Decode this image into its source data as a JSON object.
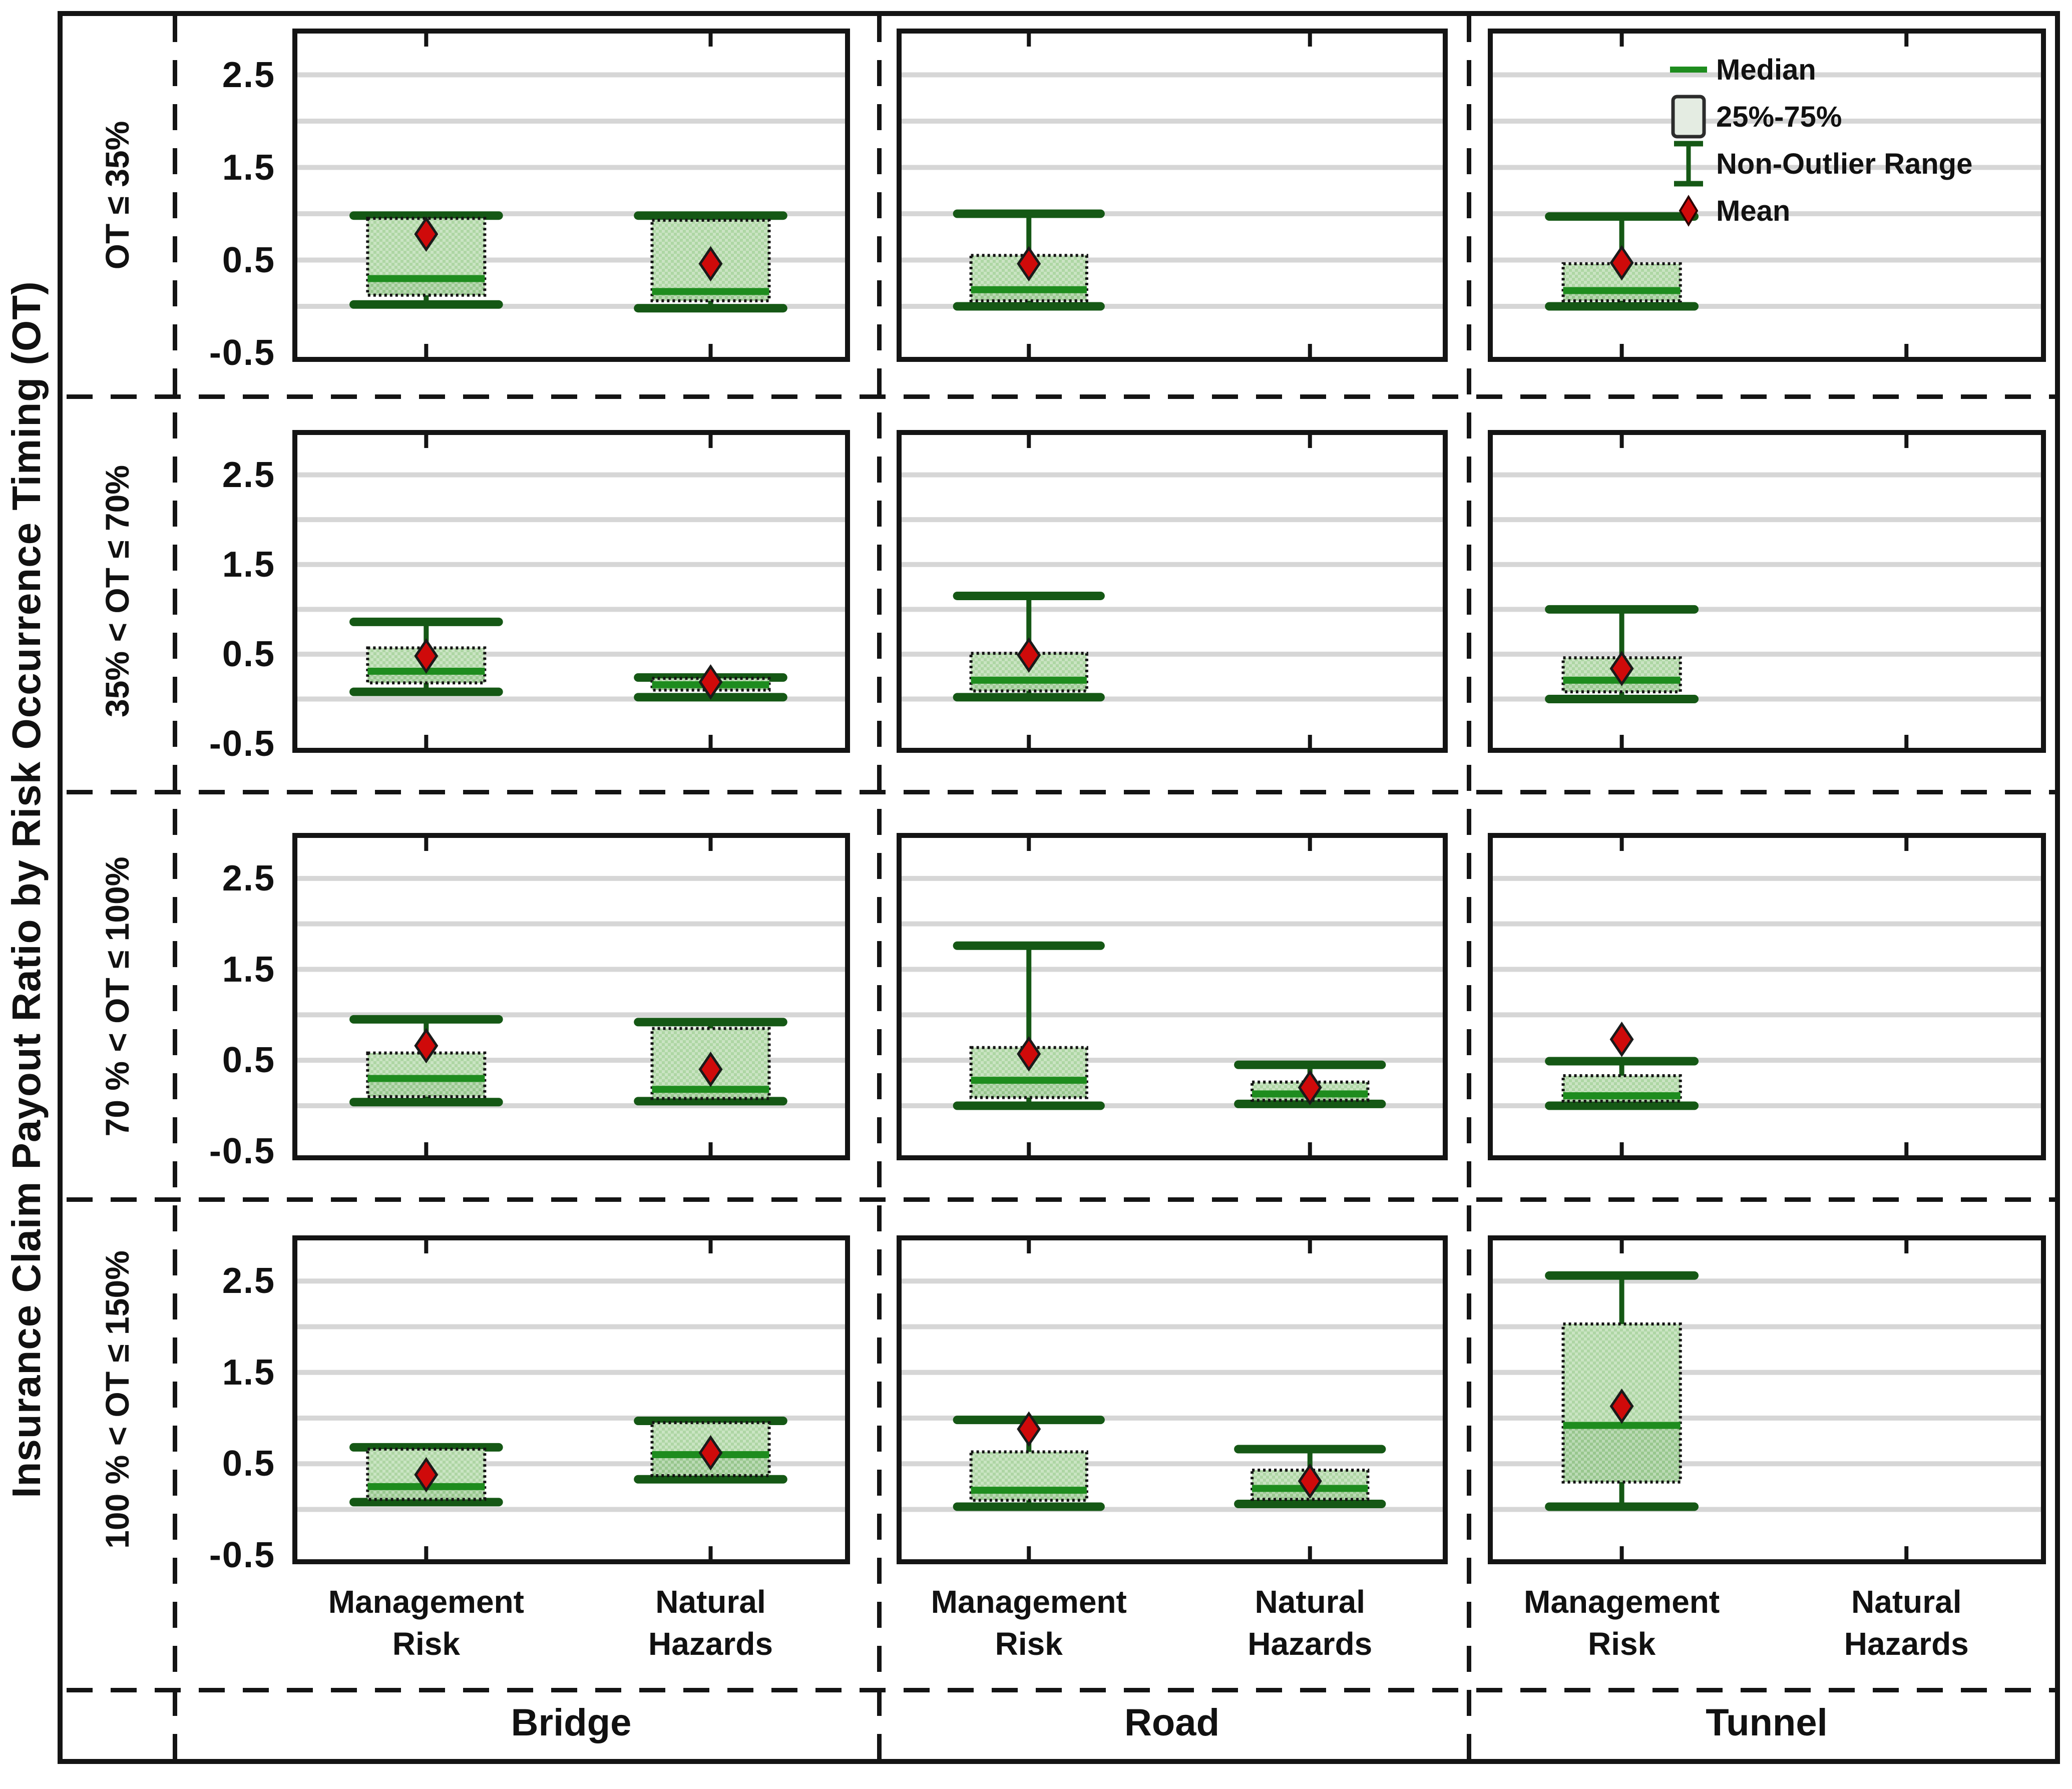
{
  "figure": {
    "ylabel": "Insurance Claim Payout Ratio by Risk Occurrence Timing (OT)",
    "row_labels": [
      "OT ≤ 35%",
      "35% < OT ≤ 70%",
      "70 % < OT ≤ 100%",
      "100 % < OT ≤ 150%"
    ],
    "column_labels": [
      "Bridge",
      "Road",
      "Tunnel"
    ],
    "category_labels": [
      "Management Risk",
      "Natural Hazards"
    ],
    "y_tick_labels": [
      "2.5",
      "1.5",
      "0.5",
      "-0.5"
    ],
    "legend": {
      "median": "Median",
      "box": "25%-75%",
      "range": "Non-Outlier Range",
      "mean": "Mean"
    },
    "colors": {
      "box_fill_upper": "#aed6a4",
      "box_fill_lower": "#98c78e",
      "box_border": "#141414",
      "median": "#1e8c1e",
      "whisker": "#155815",
      "mean": "#cf0a0a",
      "gridline": "#d6d6d6",
      "frame": "#141414",
      "legend_box_fill": "#e4ece2"
    }
  },
  "chart_data": {
    "type": "boxplot",
    "layout": "4 rows (risk occurrence timing bins) x 3 columns (asset types), 2 category slots per panel",
    "rows": [
      "OT ≤ 35%",
      "35% < OT ≤ 70%",
      "70 % < OT ≤ 100%",
      "100 % < OT ≤ 150%"
    ],
    "columns": [
      "Bridge",
      "Road",
      "Tunnel"
    ],
    "categories": [
      "Management Risk",
      "Natural Hazards"
    ],
    "ylabel": "Insurance Claim Payout Ratio by Risk Occurrence Timing (OT)",
    "y_ticks": [
      2.5,
      1.5,
      0.5,
      -0.5
    ],
    "gridline_values": [
      0,
      0.5,
      1.0,
      1.5,
      2.0,
      2.5
    ],
    "ylim": [
      -0.6,
      3.0
    ],
    "legend": [
      "Median",
      "25%-75%",
      "Non-Outlier Range",
      "Mean"
    ],
    "legend_position": "top-right of Tunnel / OT ≤ 35% panel",
    "panels": [
      {
        "row": 0,
        "col": 0,
        "boxes": [
          {
            "category": "Management Risk",
            "position": 0,
            "whisker_low": 0.02,
            "q1": 0.12,
            "median": 0.3,
            "q3": 0.95,
            "whisker_high": 0.98,
            "mean": 0.78
          },
          {
            "category": "Natural Hazards",
            "position": 1,
            "whisker_low": -0.02,
            "q1": 0.06,
            "median": 0.16,
            "q3": 0.93,
            "whisker_high": 0.98,
            "mean": 0.46
          }
        ]
      },
      {
        "row": 0,
        "col": 1,
        "boxes": [
          {
            "category": "Management Risk",
            "position": 0,
            "whisker_low": 0.0,
            "q1": 0.06,
            "median": 0.18,
            "q3": 0.55,
            "whisker_high": 1.0,
            "mean": 0.46
          }
        ]
      },
      {
        "row": 0,
        "col": 2,
        "boxes": [
          {
            "category": "Management Risk",
            "position": 0,
            "whisker_low": 0.0,
            "q1": 0.06,
            "median": 0.17,
            "q3": 0.46,
            "whisker_high": 0.97,
            "mean": 0.47
          }
        ]
      },
      {
        "row": 1,
        "col": 0,
        "boxes": [
          {
            "category": "Management Risk",
            "position": 0,
            "whisker_low": 0.08,
            "q1": 0.18,
            "median": 0.31,
            "q3": 0.57,
            "whisker_high": 0.86,
            "mean": 0.48
          },
          {
            "category": "Natural Hazards",
            "position": 1,
            "whisker_low": 0.02,
            "q1": 0.1,
            "median": 0.16,
            "q3": 0.23,
            "whisker_high": 0.24,
            "mean": 0.19
          }
        ]
      },
      {
        "row": 1,
        "col": 1,
        "boxes": [
          {
            "category": "Management Risk",
            "position": 0,
            "whisker_low": 0.02,
            "q1": 0.09,
            "median": 0.21,
            "q3": 0.51,
            "whisker_high": 1.15,
            "mean": 0.49
          }
        ]
      },
      {
        "row": 1,
        "col": 2,
        "boxes": [
          {
            "category": "Management Risk",
            "position": 0,
            "whisker_low": 0.0,
            "q1": 0.08,
            "median": 0.21,
            "q3": 0.46,
            "whisker_high": 1.0,
            "mean": 0.34
          }
        ]
      },
      {
        "row": 2,
        "col": 0,
        "boxes": [
          {
            "category": "Management Risk",
            "position": 0,
            "whisker_low": 0.04,
            "q1": 0.1,
            "median": 0.3,
            "q3": 0.58,
            "whisker_high": 0.95,
            "mean": 0.66
          },
          {
            "category": "Natural Hazards",
            "position": 1,
            "whisker_low": 0.05,
            "q1": 0.08,
            "median": 0.18,
            "q3": 0.85,
            "whisker_high": 0.92,
            "mean": 0.4
          }
        ]
      },
      {
        "row": 2,
        "col": 1,
        "boxes": [
          {
            "category": "Management Risk",
            "position": 0,
            "whisker_low": 0.0,
            "q1": 0.09,
            "median": 0.28,
            "q3": 0.64,
            "whisker_high": 1.76,
            "mean": 0.57
          },
          {
            "category": "Natural Hazards",
            "position": 1,
            "whisker_low": 0.02,
            "q1": 0.06,
            "median": 0.13,
            "q3": 0.26,
            "whisker_high": 0.45,
            "mean": 0.2
          }
        ]
      },
      {
        "row": 2,
        "col": 2,
        "boxes": [
          {
            "category": "Management Risk",
            "position": 0,
            "whisker_low": 0.0,
            "q1": 0.05,
            "median": 0.11,
            "q3": 0.33,
            "whisker_high": 0.49,
            "mean": 0.73
          }
        ]
      },
      {
        "row": 3,
        "col": 0,
        "boxes": [
          {
            "category": "Management Risk",
            "position": 0,
            "whisker_low": 0.08,
            "q1": 0.11,
            "median": 0.25,
            "q3": 0.66,
            "whisker_high": 0.68,
            "mean": 0.38
          },
          {
            "category": "Natural Hazards",
            "position": 1,
            "whisker_low": 0.33,
            "q1": 0.37,
            "median": 0.6,
            "q3": 0.95,
            "whisker_high": 0.97,
            "mean": 0.62
          }
        ]
      },
      {
        "row": 3,
        "col": 1,
        "boxes": [
          {
            "category": "Management Risk",
            "position": 0,
            "whisker_low": 0.03,
            "q1": 0.1,
            "median": 0.21,
            "q3": 0.63,
            "whisker_high": 0.98,
            "mean": 0.88
          },
          {
            "category": "Natural Hazards",
            "position": 1,
            "whisker_low": 0.06,
            "q1": 0.11,
            "median": 0.23,
            "q3": 0.43,
            "whisker_high": 0.66,
            "mean": 0.31
          }
        ]
      },
      {
        "row": 3,
        "col": 2,
        "boxes": [
          {
            "category": "Management Risk",
            "position": 0,
            "whisker_low": 0.03,
            "q1": 0.3,
            "median": 0.92,
            "q3": 2.03,
            "whisker_high": 2.56,
            "mean": 1.13
          }
        ]
      }
    ]
  }
}
